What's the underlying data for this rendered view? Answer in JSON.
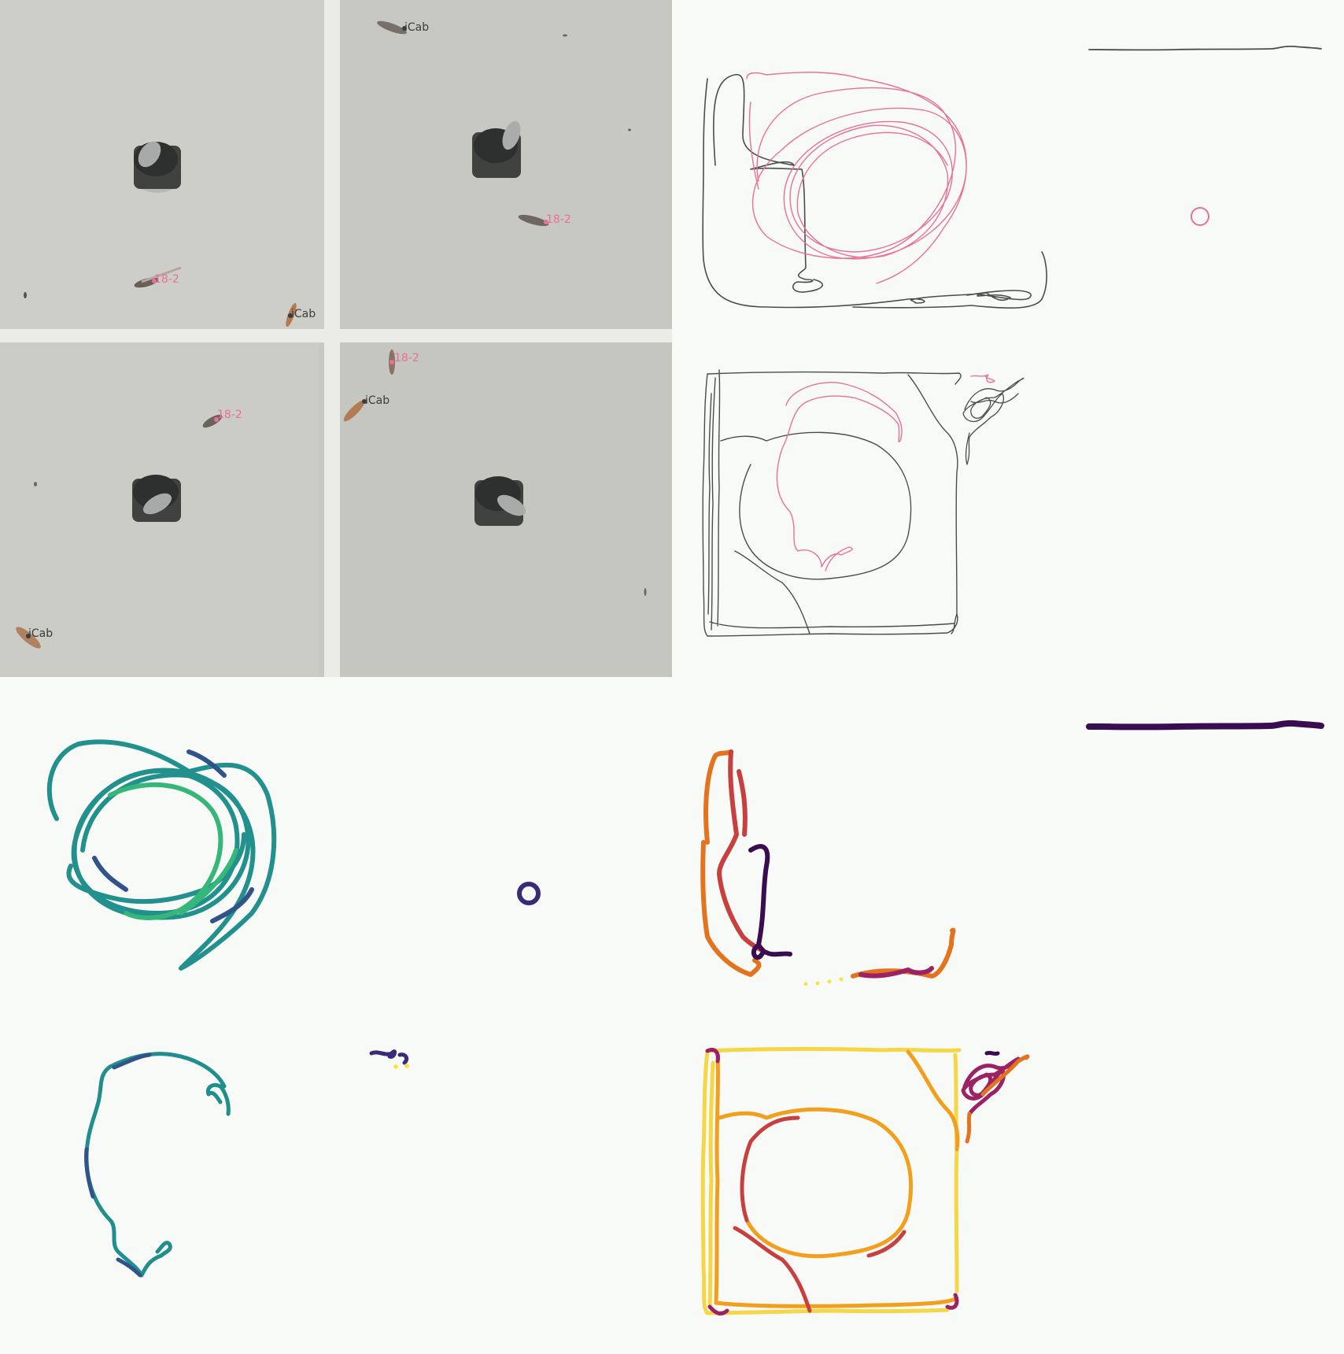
{
  "video_frame": {
    "labels": {
      "strain_a": "iCab",
      "strain_b": "18-2"
    }
  },
  "colors": {
    "background": "#f8faf7",
    "tank_floor": "#c9cac3",
    "tank_divider": "#e9e9e6",
    "track_strain_a": "#4a4d4c",
    "track_strain_b": "#e8709a",
    "viridis_low": "#3b2a78",
    "viridis_mid": "#1f9a8a",
    "viridis_high": "#35b779",
    "inferno_low": "#3a0c50",
    "inferno_mid": "#c8403d",
    "inferno_high": "#f5d646"
  }
}
